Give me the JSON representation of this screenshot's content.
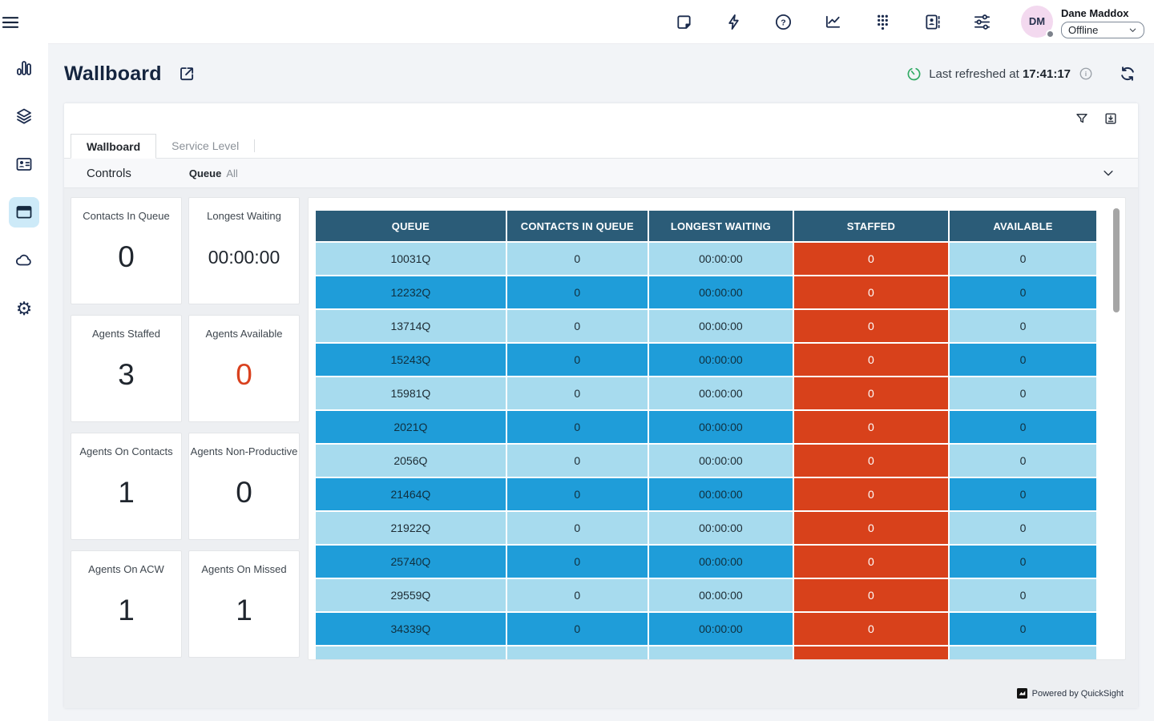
{
  "topbar": {
    "icons": [
      "notes-icon",
      "quick-connects-icon",
      "help-icon",
      "metrics-icon",
      "dialpad-icon",
      "directory-icon",
      "settings-sliders-icon"
    ],
    "user": {
      "initials": "DM",
      "name": "Dane Maddox",
      "status": "Offline"
    }
  },
  "sidebar": {
    "icons": [
      "menu-icon",
      "bar-chart-icon",
      "layers-icon",
      "contact-card-icon",
      "wallboard-icon",
      "cloud-icon",
      "gear-icon"
    ],
    "selected": "wallboard-icon"
  },
  "header": {
    "title": "Wallboard",
    "refresh_prefix": "Last refreshed at",
    "refresh_time": "17:41:17"
  },
  "tabs": [
    {
      "label": "Wallboard",
      "active": true
    },
    {
      "label": "Service Level",
      "active": false
    }
  ],
  "controls": {
    "label": "Controls",
    "filter_name": "Queue",
    "filter_value": "All"
  },
  "kpis": [
    {
      "label": "Contacts In Queue",
      "value": "0",
      "small": false,
      "accent": false
    },
    {
      "label": "Longest Waiting",
      "value": "00:00:00",
      "small": true,
      "accent": false
    },
    {
      "label": "Agents Staffed",
      "value": "3",
      "small": false,
      "accent": false
    },
    {
      "label": "Agents Available",
      "value": "0",
      "small": false,
      "accent": true
    },
    {
      "label": "Agents On Contacts",
      "value": "1",
      "small": false,
      "accent": false
    },
    {
      "label": "Agents Non-Productive",
      "value": "0",
      "small": false,
      "accent": false
    },
    {
      "label": "Agents On ACW",
      "value": "1",
      "small": false,
      "accent": false
    },
    {
      "label": "Agents On Missed",
      "value": "1",
      "small": false,
      "accent": false
    }
  ],
  "table": {
    "columns": [
      "QUEUE",
      "CONTACTS IN QUEUE",
      "LONGEST WAITING",
      "STAFFED",
      "AVAILABLE"
    ],
    "rows": [
      [
        "10031Q",
        "0",
        "00:00:00",
        "0",
        "0"
      ],
      [
        "12232Q",
        "0",
        "00:00:00",
        "0",
        "0"
      ],
      [
        "13714Q",
        "0",
        "00:00:00",
        "0",
        "0"
      ],
      [
        "15243Q",
        "0",
        "00:00:00",
        "0",
        "0"
      ],
      [
        "15981Q",
        "0",
        "00:00:00",
        "0",
        "0"
      ],
      [
        "2021Q",
        "0",
        "00:00:00",
        "0",
        "0"
      ],
      [
        "2056Q",
        "0",
        "00:00:00",
        "0",
        "0"
      ],
      [
        "21464Q",
        "0",
        "00:00:00",
        "0",
        "0"
      ],
      [
        "21922Q",
        "0",
        "00:00:00",
        "0",
        "0"
      ],
      [
        "25740Q",
        "0",
        "00:00:00",
        "0",
        "0"
      ],
      [
        "29559Q",
        "0",
        "00:00:00",
        "0",
        "0"
      ],
      [
        "34339Q",
        "0",
        "00:00:00",
        "0",
        "0"
      ],
      [
        "",
        "",
        "",
        "",
        ""
      ]
    ]
  },
  "footer": {
    "powered_by": "Powered by QuickSight"
  },
  "colors": {
    "header_teal": "#2b5c78",
    "row_blue": "#1f9dd9",
    "row_light": "#a7dbee",
    "staffed_orange": "#d8411b",
    "accent_orange": "#d9411e",
    "refresh_green": "#2fa963",
    "navy": "#1b2b4d",
    "sidebar_selected_bg": "#cdeaf8",
    "avatar_pink": "#f3d9ef",
    "sheet_bg": "#edeff2"
  }
}
